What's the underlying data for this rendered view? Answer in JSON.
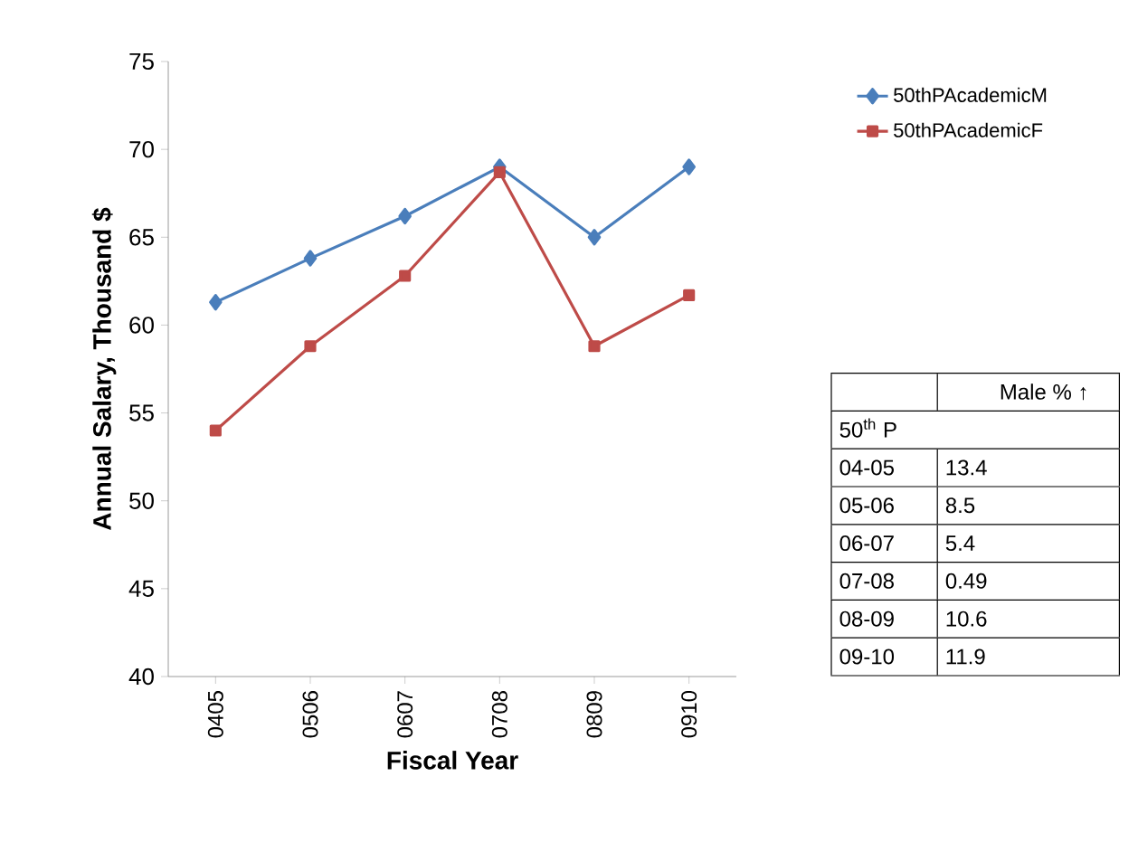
{
  "chart_data": [
    {
      "type": "line",
      "xlabel": "Fiscal Year",
      "ylabel": "Annual Salary, Thousand $",
      "categories": [
        "0405",
        "0506",
        "0607",
        "0708",
        "0809",
        "0910"
      ],
      "series": [
        {
          "name": "50thPAcademicM",
          "color": "#4a7ebb",
          "marker": "diamond",
          "values": [
            61.3,
            63.8,
            66.2,
            69.0,
            65.0,
            69.0
          ]
        },
        {
          "name": "50thPAcademicF",
          "color": "#be4b48",
          "marker": "square",
          "values": [
            54.0,
            58.8,
            62.8,
            68.7,
            58.8,
            61.7
          ]
        }
      ],
      "ylim": [
        40,
        75
      ],
      "yticks": [
        40,
        45,
        50,
        55,
        60,
        65,
        70,
        75
      ],
      "grid": false,
      "legend": "top right"
    },
    {
      "type": "other",
      "title": "Male % ↑",
      "subtitle": "50$^{th}$ P",
      "categories": [
        "04-05",
        "05-06",
        "06-07",
        "07-08",
        "08-09",
        "09-10"
      ],
      "values": [
        13.4,
        8.5,
        5.4,
        0.49,
        10.6,
        11.9
      ],
      "data_labels": true
    }
  ]
}
